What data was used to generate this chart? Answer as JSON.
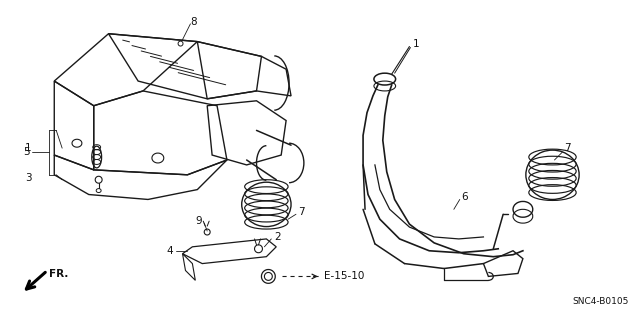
{
  "bg_color": "#ffffff",
  "fig_width": 6.4,
  "fig_height": 3.19,
  "dpi": 100,
  "diagram_code": "SNC4-B0105",
  "label_color": "#111111",
  "line_color": "#1a1a1a"
}
